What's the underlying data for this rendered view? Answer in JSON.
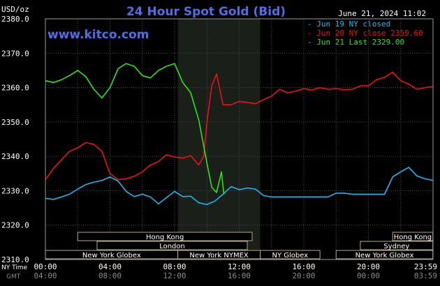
{
  "chart_data": {
    "type": "line",
    "title": "24 Hour Spot Gold (Bid)",
    "brand": "www.kitco.com",
    "y_unit": "USD/oz",
    "date_label": "June 21, 2024 11:02",
    "ylim": [
      2310,
      2380
    ],
    "y_ticks": [
      "2380.0",
      "2370.0",
      "2360.0",
      "2350.0",
      "2340.0",
      "2330.0",
      "2320.0",
      "2310.0"
    ],
    "xlim": [
      0,
      24
    ],
    "x_ticks_ny": [
      "00:00",
      "04:00",
      "08:00",
      "12:00",
      "16:00",
      "20:00",
      "23:59"
    ],
    "x_ticks_gmt": [
      "04:00",
      "08:00",
      "12:00",
      "16:00",
      "20:00",
      "00:00",
      "03:59"
    ],
    "tz_ny_label": "NY Time",
    "tz_gmt_label": "GMT",
    "grid": true,
    "legend_position": "top-right",
    "sessions": [
      {
        "label": "Hong Kong",
        "start": 2.0,
        "end": 12.8,
        "row": 0
      },
      {
        "label": "Hong Kong",
        "start": 21.5,
        "end": 23.99,
        "row": 0
      },
      {
        "label": "London",
        "start": 3.2,
        "end": 12.5,
        "row": 1
      },
      {
        "label": "Sydney",
        "start": 19.5,
        "end": 23.99,
        "row": 1
      },
      {
        "label": "New York Globex",
        "start": 0.0,
        "end": 8.2,
        "row": 2
      },
      {
        "label": "New York NYMEX",
        "start": 8.2,
        "end": 13.3,
        "row": 2
      },
      {
        "label": "NY Globex",
        "start": 13.3,
        "end": 17.0,
        "row": 2
      },
      {
        "label": "New York Globex",
        "start": 18.0,
        "end": 23.99,
        "row": 2
      }
    ],
    "shade": {
      "start": 8.2,
      "end": 13.3
    },
    "series": [
      {
        "name": "Jun 19 NY closed",
        "legend_label": "- Jun 19 NY closed",
        "color": "#19b8f0",
        "x": [
          0,
          0.5,
          1,
          1.5,
          2,
          2.5,
          3,
          3.5,
          4,
          4.5,
          5,
          5.5,
          6,
          6.5,
          7,
          7.5,
          8,
          8.5,
          9,
          9.5,
          10,
          10.5,
          11,
          11.5,
          12,
          12.5,
          13,
          13.5,
          14,
          14.5,
          15,
          15.5,
          16,
          16.5,
          17,
          17.5,
          18,
          18.5,
          19,
          19.5,
          20,
          20.5,
          21,
          21.5,
          22,
          22.5,
          23,
          23.5,
          23.99
        ],
        "y": [
          2327.8,
          2327.5,
          2328.2,
          2329.0,
          2330.5,
          2331.8,
          2332.5,
          2333.0,
          2334.0,
          2332.8,
          2329.8,
          2328.3,
          2329.0,
          2328.2,
          2326.2,
          2328.0,
          2329.8,
          2328.3,
          2328.4,
          2326.5,
          2326.0,
          2327.0,
          2329.0,
          2331.2,
          2330.3,
          2330.8,
          2330.5,
          2328.6,
          2328.2,
          2328.2,
          2328.2,
          2328.2,
          2328.2,
          2328.2,
          2328.2,
          2328.2,
          2329.3,
          2329.3,
          2329.0,
          2329.0,
          2329.0,
          2329.0,
          2329.0,
          2334.0,
          2335.5,
          2336.8,
          2334.3,
          2333.5,
          2333.0
        ]
      },
      {
        "name": "Jun 20 NY close 2359.60",
        "legend_label": "- Jun 20 NY close 2359.60",
        "color": "#ee1111",
        "x": [
          0,
          0.5,
          1,
          1.5,
          2,
          2.5,
          3,
          3.5,
          4,
          4.5,
          5,
          5.5,
          6,
          6.5,
          7,
          7.5,
          8,
          8.5,
          9,
          9.5,
          9.8,
          10,
          10.3,
          10.6,
          11,
          11.5,
          12,
          12.5,
          13,
          13.5,
          14,
          14.5,
          15,
          15.5,
          16,
          16.5,
          17,
          17.5,
          18,
          18.5,
          19,
          19.5,
          20,
          20.5,
          21,
          21.5,
          22,
          22.5,
          23,
          23.5,
          23.99
        ],
        "y": [
          2333.2,
          2336.5,
          2339.0,
          2341.5,
          2342.5,
          2344.0,
          2343.5,
          2341.5,
          2335.0,
          2333.2,
          2333.5,
          2334.2,
          2335.5,
          2337.5,
          2338.5,
          2340.5,
          2339.8,
          2339.5,
          2340.2,
          2337.5,
          2340.0,
          2350.0,
          2360.5,
          2364.0,
          2355.0,
          2355.0,
          2356.0,
          2355.7,
          2355.3,
          2356.5,
          2357.5,
          2359.5,
          2358.5,
          2359.0,
          2359.7,
          2359.3,
          2360.0,
          2359.5,
          2359.7,
          2359.4,
          2359.5,
          2360.5,
          2360.5,
          2362.3,
          2363.0,
          2364.5,
          2362.0,
          2361.0,
          2359.5,
          2360.0,
          2360.3
        ]
      },
      {
        "name": "Jun 21 Last 2329.00",
        "legend_label": "- Jun 21 Last 2329.00",
        "color": "#2ce614",
        "x": [
          0,
          0.5,
          1,
          1.5,
          2,
          2.5,
          3,
          3.5,
          4,
          4.5,
          5,
          5.5,
          6,
          6.5,
          7,
          7.5,
          8,
          8.5,
          9,
          9.5,
          10,
          10.3,
          10.6,
          10.9,
          11.05
        ],
        "y": [
          2362.0,
          2361.5,
          2362.3,
          2363.5,
          2365.0,
          2363.2,
          2359.5,
          2357.0,
          2360.0,
          2365.5,
          2367.0,
          2366.2,
          2363.5,
          2362.8,
          2365.0,
          2366.2,
          2367.0,
          2361.5,
          2358.5,
          2350.5,
          2338.0,
          2331.0,
          2329.5,
          2335.5,
          2329.0
        ]
      }
    ]
  }
}
